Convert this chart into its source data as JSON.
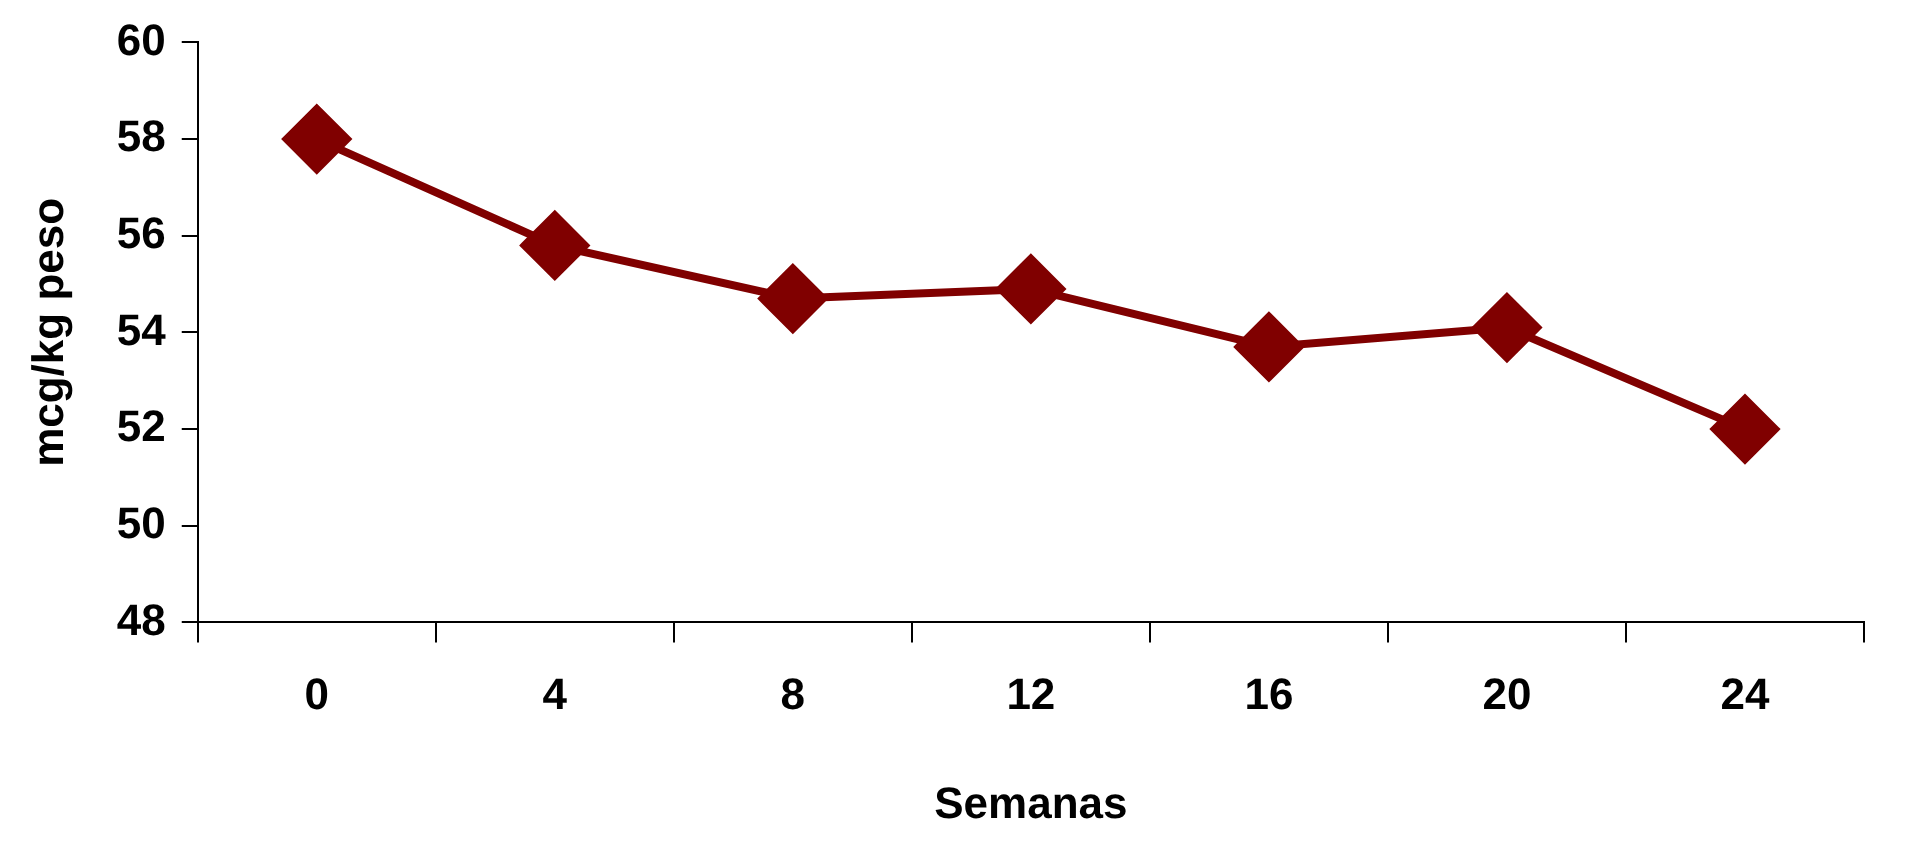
{
  "chart_data": {
    "type": "line",
    "xlabel": "Semanas",
    "ylabel": "mcg/kg peso",
    "categories": [
      "0",
      "4",
      "8",
      "12",
      "16",
      "20",
      "24"
    ],
    "series": [
      {
        "color": "#800000",
        "values": [
          58.0,
          55.8,
          54.7,
          54.9,
          53.7,
          54.1,
          52.0
        ]
      }
    ],
    "ylim": [
      48,
      60
    ],
    "yticks": [
      48,
      50,
      52,
      54,
      56,
      58,
      60
    ],
    "grid": false,
    "legend": false,
    "marker": "diamond",
    "line_style": "solid"
  }
}
